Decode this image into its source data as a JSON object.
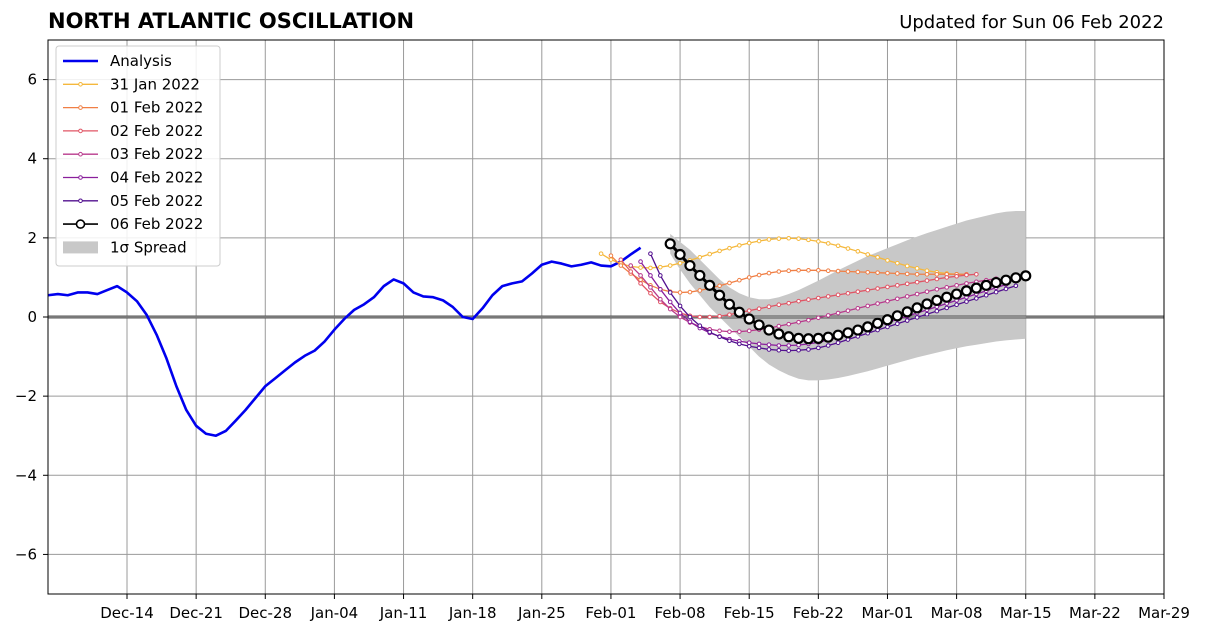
{
  "title": "NORTH ATLANTIC OSCILLATION",
  "subtitle": "Updated for Sun 06 Feb 2022",
  "chart_data": {
    "type": "line",
    "x_axis": {
      "type": "date",
      "range": [
        "2021-12-06",
        "2022-03-29"
      ],
      "tick_labels": [
        "Dec-14",
        "Dec-21",
        "Dec-28",
        "Jan-04",
        "Jan-11",
        "Jan-18",
        "Jan-25",
        "Feb-01",
        "Feb-08",
        "Feb-15",
        "Feb-22",
        "Mar-01",
        "Mar-08",
        "Mar-15",
        "Mar-22",
        "Mar-29"
      ],
      "tick_dates": [
        "2021-12-14",
        "2021-12-21",
        "2021-12-28",
        "2022-01-04",
        "2022-01-11",
        "2022-01-18",
        "2022-01-25",
        "2022-02-01",
        "2022-02-08",
        "2022-02-15",
        "2022-02-22",
        "2022-03-01",
        "2022-03-08",
        "2022-03-15",
        "2022-03-22",
        "2022-03-29"
      ]
    },
    "y_axis": {
      "range": [
        -7,
        7
      ],
      "ticks": [
        -6,
        -4,
        -2,
        0,
        2,
        4,
        6
      ],
      "tick_labels": [
        "−6",
        "−4",
        "−2",
        "0",
        "2",
        "4",
        "6"
      ]
    },
    "grid": true,
    "legend_position": "top-left",
    "analysis": {
      "name": "Analysis",
      "color": "#0000ee",
      "start_date": "2021-12-06",
      "values": [
        0.55,
        0.58,
        0.55,
        0.62,
        0.62,
        0.58,
        0.68,
        0.78,
        0.62,
        0.4,
        0.05,
        -0.45,
        -1.05,
        -1.75,
        -2.35,
        -2.75,
        -2.95,
        -3.0,
        -2.88,
        -2.62,
        -2.35,
        -2.05,
        -1.75,
        -1.55,
        -1.35,
        -1.15,
        -0.98,
        -0.85,
        -0.62,
        -0.32,
        -0.05,
        0.18,
        0.32,
        0.5,
        0.78,
        0.95,
        0.85,
        0.62,
        0.52,
        0.5,
        0.42,
        0.25,
        0.0,
        -0.05,
        0.22,
        0.55,
        0.78,
        0.85,
        0.9,
        1.1,
        1.32,
        1.4,
        1.35,
        1.28,
        1.32,
        1.38,
        1.3,
        1.28,
        1.4,
        1.58,
        1.75
      ]
    },
    "forecasts": [
      {
        "name": "31 Jan 2022",
        "color": "#f5b83c",
        "start_date": "2022-01-31",
        "values": [
          1.6,
          1.45,
          1.35,
          1.28,
          1.25,
          1.24,
          1.26,
          1.3,
          1.36,
          1.43,
          1.51,
          1.59,
          1.67,
          1.74,
          1.81,
          1.87,
          1.92,
          1.96,
          1.98,
          1.99,
          1.98,
          1.95,
          1.91,
          1.86,
          1.8,
          1.73,
          1.66,
          1.58,
          1.51,
          1.43,
          1.36,
          1.29,
          1.23,
          1.17,
          1.13,
          1.1,
          1.08,
          1.07
        ]
      },
      {
        "name": "01 Feb 2022",
        "color": "#f07f45",
        "start_date": "2022-02-01",
        "values": [
          1.55,
          1.3,
          1.1,
          0.94,
          0.8,
          0.7,
          0.64,
          0.62,
          0.63,
          0.67,
          0.73,
          0.79,
          0.86,
          0.93,
          1.0,
          1.06,
          1.11,
          1.15,
          1.17,
          1.18,
          1.18,
          1.18,
          1.17,
          1.16,
          1.15,
          1.14,
          1.13,
          1.12,
          1.11,
          1.1,
          1.09,
          1.08,
          1.08,
          1.08,
          1.08,
          1.08,
          1.08
        ]
      },
      {
        "name": "02 Feb 2022",
        "color": "#e05565",
        "start_date": "2022-02-02",
        "values": [
          1.45,
          1.15,
          0.85,
          0.6,
          0.38,
          0.22,
          0.1,
          0.03,
          0.0,
          0.0,
          0.02,
          0.06,
          0.11,
          0.16,
          0.21,
          0.26,
          0.31,
          0.35,
          0.4,
          0.44,
          0.48,
          0.52,
          0.56,
          0.6,
          0.64,
          0.68,
          0.72,
          0.76,
          0.8,
          0.84,
          0.88,
          0.92,
          0.96,
          1.0,
          1.03,
          1.06,
          1.08
        ]
      },
      {
        "name": "03 Feb 2022",
        "color": "#b83a8c",
        "start_date": "2022-02-03",
        "values": [
          1.3,
          1.05,
          0.75,
          0.45,
          0.2,
          0.0,
          -0.14,
          -0.24,
          -0.31,
          -0.35,
          -0.37,
          -0.37,
          -0.35,
          -0.32,
          -0.28,
          -0.23,
          -0.18,
          -0.13,
          -0.08,
          -0.02,
          0.04,
          0.1,
          0.16,
          0.22,
          0.28,
          0.34,
          0.4,
          0.46,
          0.52,
          0.58,
          0.64,
          0.7,
          0.75,
          0.8,
          0.85,
          0.89,
          0.93,
          0.97
        ]
      },
      {
        "name": "04 Feb 2022",
        "color": "#8a1f9c",
        "start_date": "2022-02-04",
        "values": [
          1.4,
          1.05,
          0.7,
          0.38,
          0.1,
          -0.12,
          -0.28,
          -0.4,
          -0.49,
          -0.56,
          -0.61,
          -0.65,
          -0.68,
          -0.7,
          -0.72,
          -0.72,
          -0.71,
          -0.68,
          -0.64,
          -0.58,
          -0.52,
          -0.45,
          -0.38,
          -0.3,
          -0.22,
          -0.14,
          -0.06,
          0.02,
          0.1,
          0.18,
          0.26,
          0.34,
          0.42,
          0.5,
          0.58,
          0.66,
          0.74,
          0.82
        ]
      },
      {
        "name": "05 Feb 2022",
        "color": "#52108f",
        "start_date": "2022-02-05",
        "values": [
          1.6,
          1.05,
          0.62,
          0.28,
          0.0,
          -0.22,
          -0.38,
          -0.5,
          -0.6,
          -0.68,
          -0.74,
          -0.78,
          -0.82,
          -0.84,
          -0.85,
          -0.84,
          -0.82,
          -0.78,
          -0.72,
          -0.65,
          -0.57,
          -0.49,
          -0.41,
          -0.33,
          -0.25,
          -0.17,
          -0.09,
          -0.01,
          0.07,
          0.15,
          0.23,
          0.31,
          0.39,
          0.47,
          0.55,
          0.63,
          0.71,
          0.79
        ]
      },
      {
        "name": "06 Feb 2022",
        "color": "#000000",
        "start_date": "2022-02-07",
        "values": [
          1.85,
          1.58,
          1.3,
          1.05,
          0.8,
          0.55,
          0.32,
          0.12,
          -0.05,
          -0.2,
          -0.33,
          -0.43,
          -0.5,
          -0.54,
          -0.55,
          -0.54,
          -0.51,
          -0.46,
          -0.4,
          -0.33,
          -0.25,
          -0.16,
          -0.07,
          0.03,
          0.13,
          0.23,
          0.33,
          0.42,
          0.5,
          0.58,
          0.66,
          0.73,
          0.8,
          0.87,
          0.93,
          0.99,
          1.04
        ]
      }
    ],
    "spread": {
      "name": "1σ Spread",
      "color": "#c8c8c8",
      "start_date": "2022-02-07",
      "upper": [
        2.1,
        1.9,
        1.7,
        1.45,
        1.2,
        0.95,
        0.75,
        0.6,
        0.5,
        0.45,
        0.45,
        0.5,
        0.58,
        0.68,
        0.8,
        0.92,
        1.05,
        1.18,
        1.3,
        1.42,
        1.54,
        1.64,
        1.74,
        1.84,
        1.94,
        2.03,
        2.12,
        2.2,
        2.28,
        2.36,
        2.44,
        2.5,
        2.56,
        2.62,
        2.66,
        2.68,
        2.68
      ],
      "lower": [
        1.6,
        1.2,
        0.85,
        0.55,
        0.25,
        0.0,
        -0.25,
        -0.5,
        -0.75,
        -1.0,
        -1.2,
        -1.35,
        -1.47,
        -1.56,
        -1.6,
        -1.6,
        -1.58,
        -1.54,
        -1.49,
        -1.43,
        -1.37,
        -1.3,
        -1.23,
        -1.16,
        -1.09,
        -1.02,
        -0.96,
        -0.9,
        -0.84,
        -0.79,
        -0.74,
        -0.7,
        -0.66,
        -0.62,
        -0.59,
        -0.57,
        -0.55
      ]
    }
  }
}
